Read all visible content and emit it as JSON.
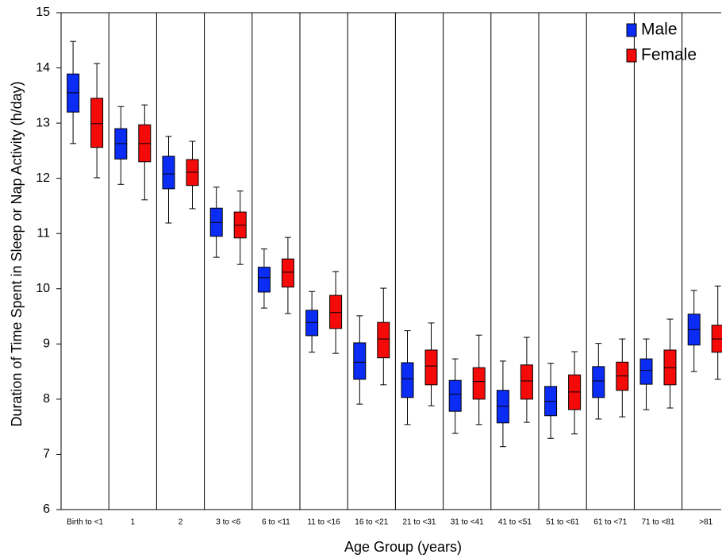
{
  "chart_data": {
    "type": "box",
    "x_label": "Age Group (years)",
    "y_label": "Duration of Time Spent in Sleep or Nap Activity (h/day)",
    "categories": [
      "Birth to <1",
      "1",
      "2",
      "3 to <6",
      "6 to <11",
      "11 to <16",
      "16 to <21",
      "21 to <31",
      "31 to <41",
      "41 to <51",
      "51 to <61",
      "61 to <71",
      "71 to <81",
      ">81"
    ],
    "ylim": [
      6,
      15
    ],
    "yticks": [
      6,
      7,
      8,
      9,
      10,
      11,
      12,
      13,
      14,
      15
    ],
    "legend": "upper right",
    "series": [
      {
        "name": "Male",
        "color": "#0a2cf5",
        "values": [
          {
            "min": 12.63,
            "q1": 13.2,
            "median": 13.55,
            "q3": 13.89,
            "max": 14.48
          },
          {
            "min": 11.89,
            "q1": 12.35,
            "median": 12.63,
            "q3": 12.9,
            "max": 13.3
          },
          {
            "min": 11.19,
            "q1": 11.81,
            "median": 12.08,
            "q3": 12.4,
            "max": 12.76
          },
          {
            "min": 10.57,
            "q1": 10.95,
            "median": 11.2,
            "q3": 11.46,
            "max": 11.84
          },
          {
            "min": 9.65,
            "q1": 9.94,
            "median": 10.2,
            "q3": 10.39,
            "max": 10.72
          },
          {
            "min": 8.85,
            "q1": 9.15,
            "median": 9.39,
            "q3": 9.61,
            "max": 9.95
          },
          {
            "min": 7.91,
            "q1": 8.36,
            "median": 8.67,
            "q3": 9.02,
            "max": 9.51
          },
          {
            "min": 7.54,
            "q1": 8.03,
            "median": 8.37,
            "q3": 8.66,
            "max": 9.24
          },
          {
            "min": 7.38,
            "q1": 7.78,
            "median": 8.09,
            "q3": 8.34,
            "max": 8.73
          },
          {
            "min": 7.14,
            "q1": 7.57,
            "median": 7.87,
            "q3": 8.16,
            "max": 8.69
          },
          {
            "min": 7.29,
            "q1": 7.7,
            "median": 7.96,
            "q3": 8.23,
            "max": 8.65
          },
          {
            "min": 7.64,
            "q1": 8.03,
            "median": 8.33,
            "q3": 8.59,
            "max": 9.01
          },
          {
            "min": 7.81,
            "q1": 8.27,
            "median": 8.52,
            "q3": 8.73,
            "max": 9.09
          },
          {
            "min": 8.5,
            "q1": 8.98,
            "median": 9.26,
            "q3": 9.54,
            "max": 9.97
          }
        ]
      },
      {
        "name": "Female",
        "color": "#f50a0a",
        "values": [
          {
            "min": 12.01,
            "q1": 12.56,
            "median": 12.99,
            "q3": 13.45,
            "max": 14.08
          },
          {
            "min": 11.61,
            "q1": 12.3,
            "median": 12.63,
            "q3": 12.97,
            "max": 13.33
          },
          {
            "min": 11.45,
            "q1": 11.87,
            "median": 12.11,
            "q3": 12.34,
            "max": 12.67
          },
          {
            "min": 10.44,
            "q1": 10.92,
            "median": 11.15,
            "q3": 11.39,
            "max": 11.77
          },
          {
            "min": 9.55,
            "q1": 10.03,
            "median": 10.3,
            "q3": 10.54,
            "max": 10.93
          },
          {
            "min": 8.83,
            "q1": 9.28,
            "median": 9.57,
            "q3": 9.88,
            "max": 10.31
          },
          {
            "min": 8.26,
            "q1": 8.75,
            "median": 9.09,
            "q3": 9.39,
            "max": 10.01
          },
          {
            "min": 7.88,
            "q1": 8.26,
            "median": 8.6,
            "q3": 8.89,
            "max": 9.38
          },
          {
            "min": 7.54,
            "q1": 8.0,
            "median": 8.32,
            "q3": 8.57,
            "max": 9.16
          },
          {
            "min": 7.58,
            "q1": 8.0,
            "median": 8.33,
            "q3": 8.62,
            "max": 9.12
          },
          {
            "min": 7.37,
            "q1": 7.81,
            "median": 8.13,
            "q3": 8.44,
            "max": 8.86
          },
          {
            "min": 7.68,
            "q1": 8.16,
            "median": 8.42,
            "q3": 8.67,
            "max": 9.09
          },
          {
            "min": 7.84,
            "q1": 8.26,
            "median": 8.57,
            "q3": 8.89,
            "max": 9.45
          },
          {
            "min": 8.36,
            "q1": 8.85,
            "median": 9.09,
            "q3": 9.34,
            "max": 10.05
          }
        ]
      }
    ]
  }
}
